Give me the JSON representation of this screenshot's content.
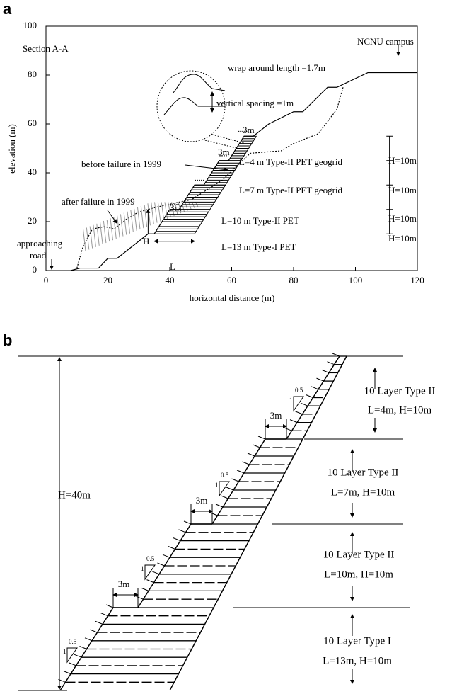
{
  "panel_a": {
    "letter": "a",
    "section": "Section A-A",
    "x_axis_label": "horizontal distance (m)",
    "y_axis_label": "elevation (m)",
    "xticks": [
      0,
      20,
      40,
      60,
      80,
      100,
      120
    ],
    "yticks": [
      0,
      20,
      40,
      60,
      80,
      100
    ],
    "wrap_length": "wrap around length =1.7m",
    "vertical_spacing": "vertical spacing =1m",
    "campus": "NCNU campus",
    "bench_labels": [
      "3m",
      "3m",
      "3m"
    ],
    "before_failure": "before failure in 1999",
    "after_failure": "after failure in 1999",
    "layer_labels": [
      "L=4 m Type-II PET geogrid",
      "L=7 m Type-II PET geogrid",
      "L=10 m Type-II PET",
      "L=13 m Type-I PET"
    ],
    "height_labels": [
      "H=10m",
      "H=10m",
      "H=10m",
      "H=10m"
    ],
    "h_symbol": "H",
    "l_symbol": "L",
    "road": [
      "approaching",
      "road"
    ]
  },
  "panel_b": {
    "letter": "b",
    "total_height": "H=40m",
    "bench_labels": [
      "3m",
      "3m",
      "3m"
    ],
    "slope_ratio": [
      "0.5",
      "0.5",
      "0.5",
      "0.5"
    ],
    "slope_unit": [
      "1",
      "1",
      "1",
      "1"
    ],
    "blocks": [
      {
        "type": "10 Layer Type II",
        "size": "L=4m, H=10m"
      },
      {
        "type": "10 Layer Type II",
        "size": "L=7m, H=10m"
      },
      {
        "type": "10 Layer Type II",
        "size": "L=10m, H=10m"
      },
      {
        "type": "10 Layer Type I",
        "size": "L=13m, H=10m"
      }
    ]
  }
}
